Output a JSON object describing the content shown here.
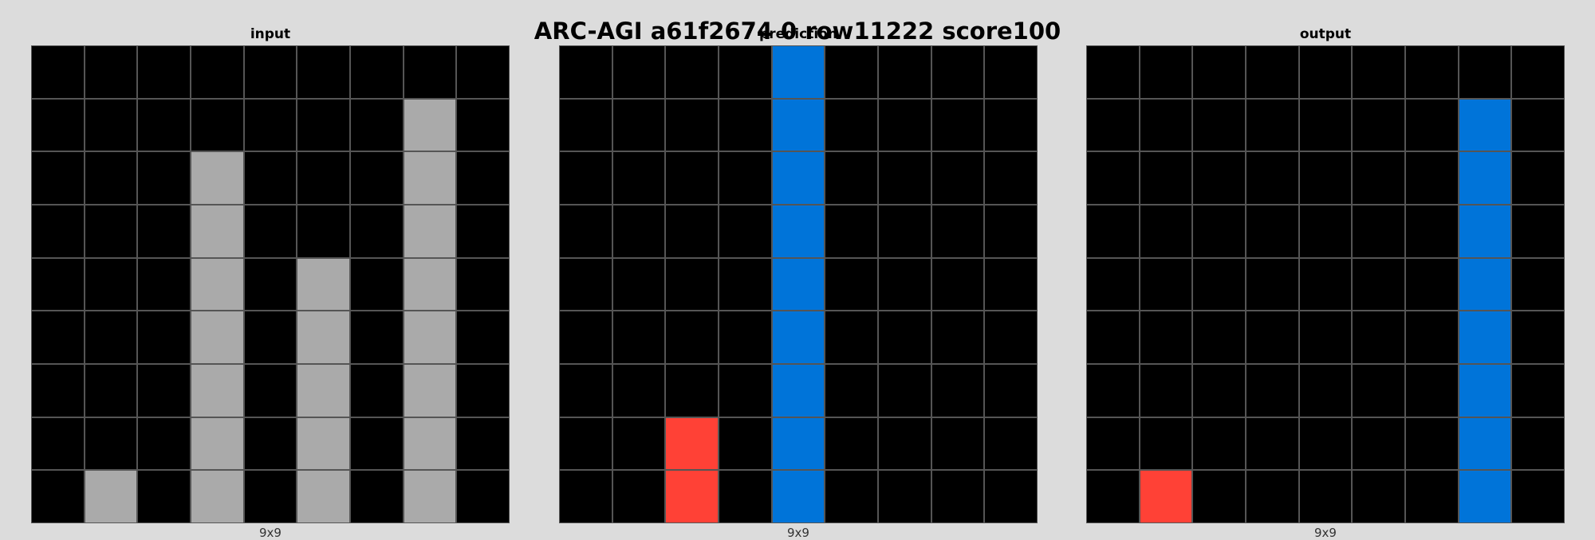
{
  "title": "ARC-AGI a61f2674 0 row11222 score100",
  "palette": {
    "0": "#000000",
    "1": "#0074d9",
    "2": "#ff4136",
    "5": "#aaaaaa"
  },
  "panels": [
    {
      "name": "input",
      "title": "input",
      "size_label": "9x9",
      "grid": [
        [
          0,
          0,
          0,
          0,
          0,
          0,
          0,
          0,
          0
        ],
        [
          0,
          0,
          0,
          0,
          0,
          0,
          0,
          5,
          0
        ],
        [
          0,
          0,
          0,
          5,
          0,
          0,
          0,
          5,
          0
        ],
        [
          0,
          0,
          0,
          5,
          0,
          0,
          0,
          5,
          0
        ],
        [
          0,
          0,
          0,
          5,
          0,
          5,
          0,
          5,
          0
        ],
        [
          0,
          0,
          0,
          5,
          0,
          5,
          0,
          5,
          0
        ],
        [
          0,
          0,
          0,
          5,
          0,
          5,
          0,
          5,
          0
        ],
        [
          0,
          0,
          0,
          5,
          0,
          5,
          0,
          5,
          0
        ],
        [
          0,
          5,
          0,
          5,
          0,
          5,
          0,
          5,
          0
        ]
      ]
    },
    {
      "name": "prediction",
      "title": "prediction",
      "size_label": "9x9",
      "grid": [
        [
          0,
          0,
          0,
          0,
          1,
          0,
          0,
          0,
          0
        ],
        [
          0,
          0,
          0,
          0,
          1,
          0,
          0,
          0,
          0
        ],
        [
          0,
          0,
          0,
          0,
          1,
          0,
          0,
          0,
          0
        ],
        [
          0,
          0,
          0,
          0,
          1,
          0,
          0,
          0,
          0
        ],
        [
          0,
          0,
          0,
          0,
          1,
          0,
          0,
          0,
          0
        ],
        [
          0,
          0,
          0,
          0,
          1,
          0,
          0,
          0,
          0
        ],
        [
          0,
          0,
          0,
          0,
          1,
          0,
          0,
          0,
          0
        ],
        [
          0,
          0,
          2,
          0,
          1,
          0,
          0,
          0,
          0
        ],
        [
          0,
          0,
          2,
          0,
          1,
          0,
          0,
          0,
          0
        ]
      ]
    },
    {
      "name": "output",
      "title": "output",
      "size_label": "9x9",
      "grid": [
        [
          0,
          0,
          0,
          0,
          0,
          0,
          0,
          0,
          0
        ],
        [
          0,
          0,
          0,
          0,
          0,
          0,
          0,
          1,
          0
        ],
        [
          0,
          0,
          0,
          0,
          0,
          0,
          0,
          1,
          0
        ],
        [
          0,
          0,
          0,
          0,
          0,
          0,
          0,
          1,
          0
        ],
        [
          0,
          0,
          0,
          0,
          0,
          0,
          0,
          1,
          0
        ],
        [
          0,
          0,
          0,
          0,
          0,
          0,
          0,
          1,
          0
        ],
        [
          0,
          0,
          0,
          0,
          0,
          0,
          0,
          1,
          0
        ],
        [
          0,
          0,
          0,
          0,
          0,
          0,
          0,
          1,
          0
        ],
        [
          0,
          2,
          0,
          0,
          0,
          0,
          0,
          1,
          0
        ]
      ]
    }
  ]
}
